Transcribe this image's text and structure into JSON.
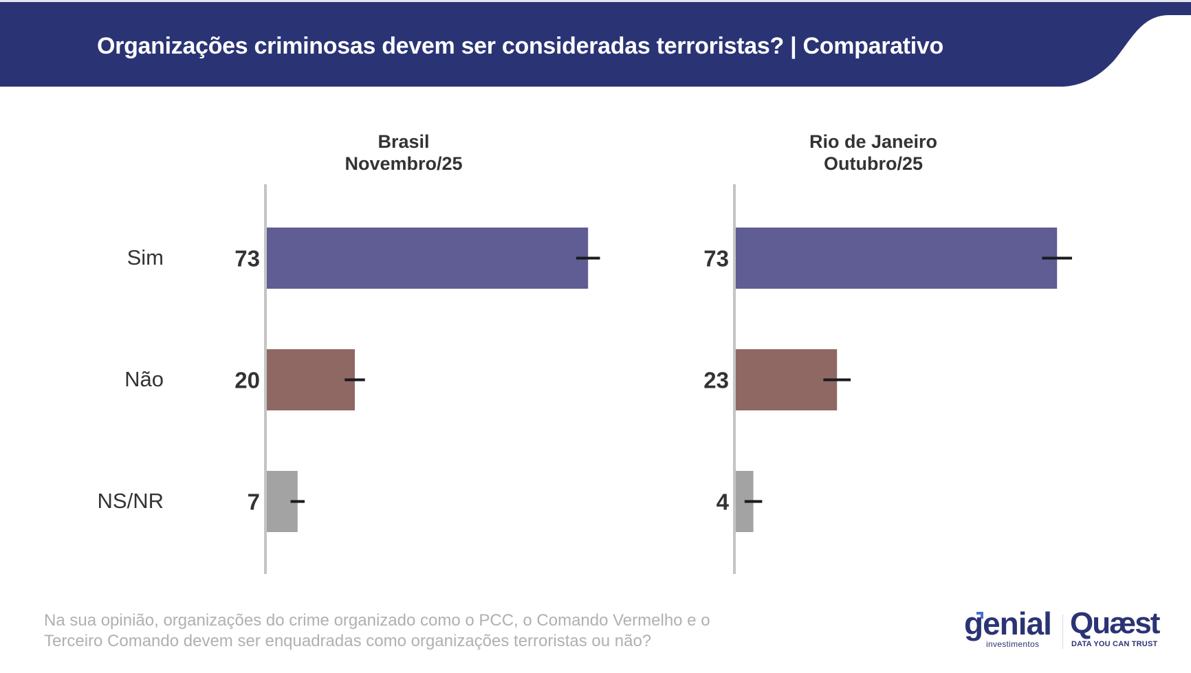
{
  "header": {
    "title": "Organizações criminosas devem ser consideradas terroristas? | Comparativo",
    "banner_color": "#2a3474"
  },
  "categories": [
    "Sim",
    "Não",
    "NS/NR"
  ],
  "category_colors": [
    "#5f5d93",
    "#8f6864",
    "#a3a3a3"
  ],
  "panels": [
    {
      "title_line1": "Brasil",
      "title_line2": "Novembro/25"
    },
    {
      "title_line1": "Rio de Janeiro",
      "title_line2": "Outubro/25"
    }
  ],
  "chart_data": [
    {
      "type": "bar",
      "orientation": "horizontal",
      "title": "Brasil Novembro/25",
      "categories": [
        "Sim",
        "Não",
        "NS/NR"
      ],
      "values": [
        73,
        20,
        7
      ],
      "error_bar_halfwidth": [
        2.7,
        2.3,
        1.6
      ],
      "unit": "%",
      "xlim": [
        0,
        80
      ],
      "grid": false,
      "legend": "none"
    },
    {
      "type": "bar",
      "orientation": "horizontal",
      "title": "Rio de Janeiro Outubro/25",
      "categories": [
        "Sim",
        "Não",
        "NS/NR"
      ],
      "values": [
        73,
        23,
        4
      ],
      "error_bar_halfwidth": [
        3.4,
        3.1,
        2.0
      ],
      "unit": "%",
      "xlim": [
        0,
        80
      ],
      "grid": false,
      "legend": "none"
    }
  ],
  "footnote": {
    "line1": "Na sua opinião, organizações do crime organizado como o PCC, o Comando Vermelho e o",
    "line2": "Terceiro Comando devem ser enquadradas como organizações terroristas ou não?"
  },
  "logos": {
    "genial": "genial",
    "genial_sub": "investimentos",
    "quaest": "Quæst",
    "quaest_sub": "DATA YOU CAN TRUST"
  }
}
